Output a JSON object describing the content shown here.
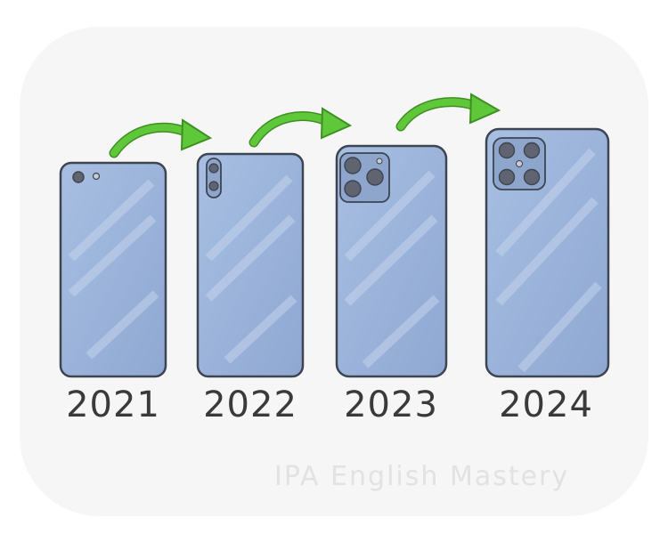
{
  "phones": [
    {
      "year": "2021",
      "camera": "single lens with flash"
    },
    {
      "year": "2022",
      "camera": "vertical dual lens"
    },
    {
      "year": "2023",
      "camera": "triple lens module"
    },
    {
      "year": "2024",
      "camera": "quad lens module"
    }
  ],
  "watermark": "IPA English Mastery",
  "colors": {
    "phone_body": "#9db5db",
    "phone_outline": "#3d4452",
    "camera_module": "#8ea5cc",
    "lens": "#5f6470",
    "arrow": "#4fbf2a",
    "background_shape": "#f4f4f4"
  },
  "icons": [
    "green-arrow-icon"
  ]
}
